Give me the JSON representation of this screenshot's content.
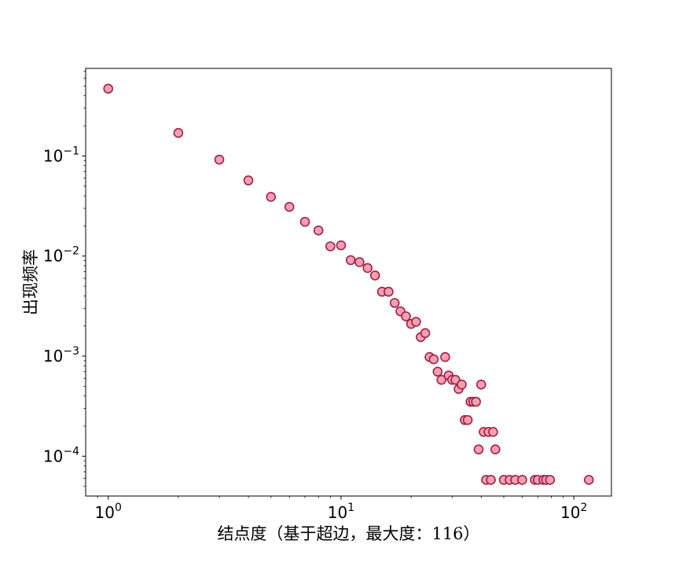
{
  "chart_data": {
    "type": "scatter",
    "title": "",
    "xlabel": "结点度（基于超边，最大度：116）",
    "ylabel": "出现频率",
    "xscale": "log",
    "yscale": "log",
    "xlim": [
      0.8,
      145
    ],
    "ylim": [
      4e-05,
      0.75
    ],
    "grid": false,
    "legend": "none",
    "x_ticks": [
      {
        "base": "10",
        "exp": "0",
        "value": 1
      },
      {
        "base": "10",
        "exp": "1",
        "value": 10
      },
      {
        "base": "10",
        "exp": "2",
        "value": 100
      }
    ],
    "y_ticks": [
      {
        "base": "10",
        "exp": "−4",
        "value": 0.0001
      },
      {
        "base": "10",
        "exp": "−3",
        "value": 0.001
      },
      {
        "base": "10",
        "exp": "−2",
        "value": 0.01
      },
      {
        "base": "10",
        "exp": "−1",
        "value": 0.1
      }
    ],
    "marker": {
      "fill": "#f4a0b0",
      "edge": "#a0204a"
    },
    "points": [
      [
        1,
        0.47
      ],
      [
        2,
        0.17
      ],
      [
        3,
        0.092
      ],
      [
        4,
        0.057
      ],
      [
        5,
        0.039
      ],
      [
        6,
        0.031
      ],
      [
        7,
        0.022
      ],
      [
        8,
        0.018
      ],
      [
        9,
        0.0125
      ],
      [
        10,
        0.0128
      ],
      [
        11,
        0.0091
      ],
      [
        12,
        0.0087
      ],
      [
        13,
        0.0076
      ],
      [
        14,
        0.0064
      ],
      [
        15,
        0.0044
      ],
      [
        16,
        0.0044
      ],
      [
        17,
        0.0034
      ],
      [
        18,
        0.0028
      ],
      [
        19,
        0.0025
      ],
      [
        20,
        0.0021
      ],
      [
        21,
        0.0022
      ],
      [
        22,
        0.00155
      ],
      [
        23,
        0.0017
      ],
      [
        24,
        0.00098
      ],
      [
        25,
        0.00093
      ],
      [
        26,
        0.0007
      ],
      [
        27,
        0.00058
      ],
      [
        28,
        0.00098
      ],
      [
        29,
        0.00064
      ],
      [
        30,
        0.00058
      ],
      [
        31,
        0.00058
      ],
      [
        32,
        0.00047
      ],
      [
        33,
        0.00052
      ],
      [
        34,
        0.00023
      ],
      [
        35,
        0.00023
      ],
      [
        36,
        0.00035
      ],
      [
        37,
        0.00035
      ],
      [
        38,
        0.00035
      ],
      [
        39,
        0.000117
      ],
      [
        40,
        0.00052
      ],
      [
        41,
        0.000175
      ],
      [
        42,
        5.8e-05
      ],
      [
        43,
        0.000175
      ],
      [
        44,
        5.8e-05
      ],
      [
        45,
        0.000175
      ],
      [
        46,
        0.000117
      ],
      [
        50,
        5.8e-05
      ],
      [
        53,
        5.8e-05
      ],
      [
        56,
        5.8e-05
      ],
      [
        60,
        5.8e-05
      ],
      [
        68,
        5.8e-05
      ],
      [
        70,
        5.8e-05
      ],
      [
        74,
        5.8e-05
      ],
      [
        76,
        5.8e-05
      ],
      [
        79,
        5.8e-05
      ],
      [
        116,
        5.8e-05
      ]
    ]
  }
}
